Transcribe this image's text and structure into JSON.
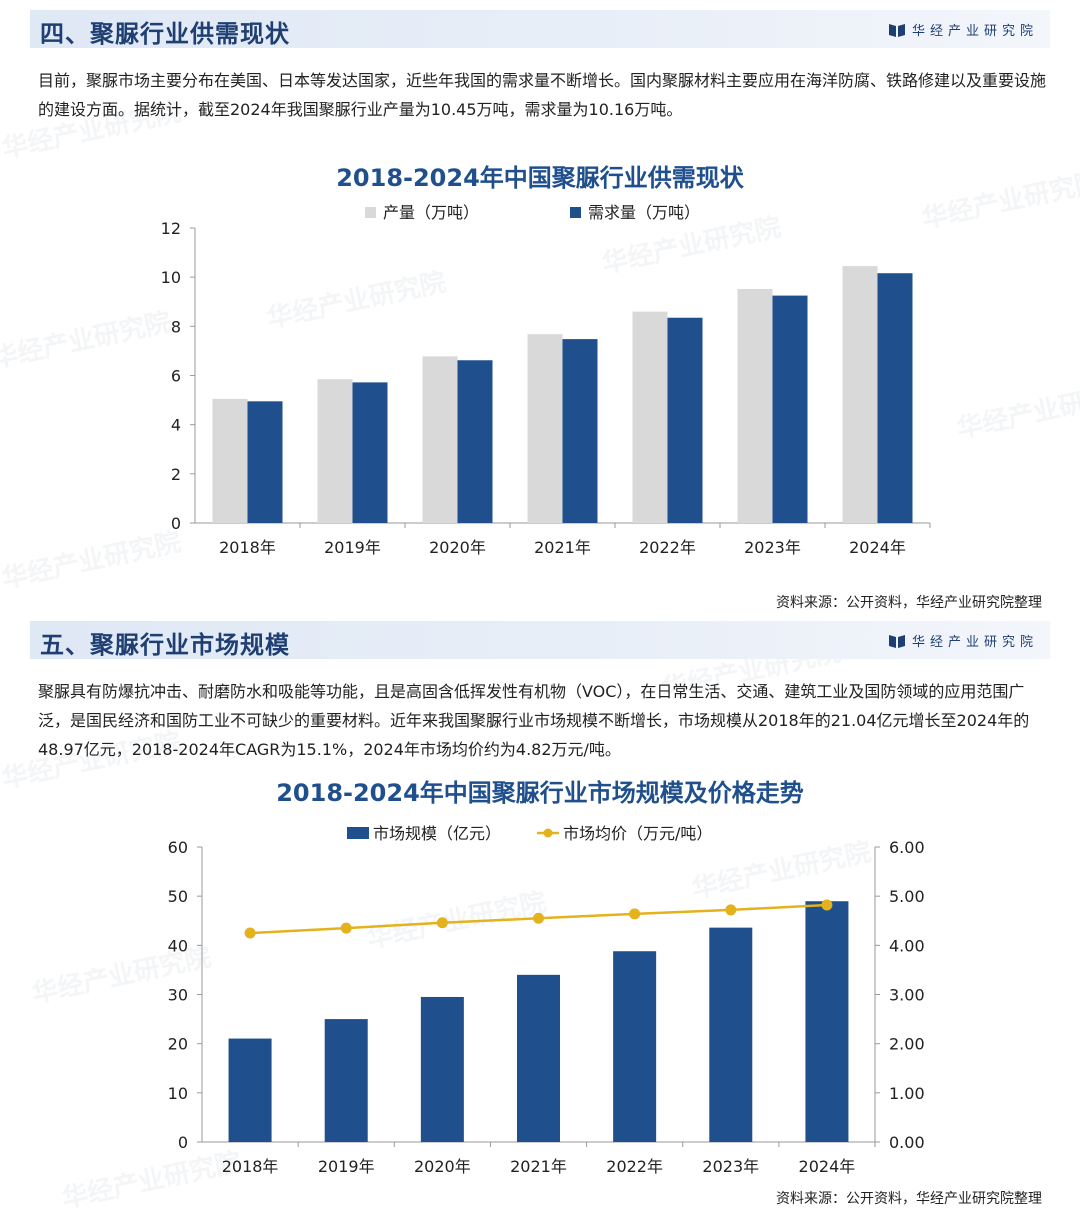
{
  "brand": "华经产业研究院",
  "watermark_text": "华经产业研究院",
  "colors": {
    "navy": "#1f4f8c",
    "grey_bar": "#d9d9d9",
    "gold": "#e3b21c",
    "title_blue": "#1f4f8c"
  },
  "section4": {
    "title": "四、聚脲行业供需现状",
    "paragraph": "目前，聚脲市场主要分布在美国、日本等发达国家，近些年我国的需求量不断增长。国内聚脲材料主要应用在海洋防腐、铁路修建以及重要设施的建设方面。据统计，截至2024年我国聚脲行业产量为10.45万吨，需求量为10.16万吨。",
    "source": "资料来源：公开资料，华经产业研究院整理"
  },
  "section5": {
    "title": "五、聚脲行业市场规模",
    "paragraph": "聚脲具有防爆抗冲击、耐磨防水和吸能等功能，且是高固含低挥发性有机物（VOC），在日常生活、交通、建筑工业及国防领域的应用范围广泛，是国民经济和国防工业不可缺少的重要材料。近年来我国聚脲行业市场规模不断增长，市场规模从2018年的21.04亿元增长至2024年的48.97亿元，2018-2024年CAGR为15.1%，2024年市场均价约为4.82万元/吨。",
    "source": "资料来源：公开资料，华经产业研究院整理"
  },
  "chart_data": [
    {
      "type": "bar",
      "title": "2018-2024年中国聚脲行业供需现状",
      "categories": [
        "2018年",
        "2019年",
        "2020年",
        "2021年",
        "2022年",
        "2023年",
        "2024年"
      ],
      "series": [
        {
          "name": "产量（万吨）",
          "values": [
            5.05,
            5.85,
            6.78,
            7.68,
            8.6,
            9.52,
            10.45
          ]
        },
        {
          "name": "需求量（万吨）",
          "values": [
            4.95,
            5.72,
            6.62,
            7.48,
            8.35,
            9.25,
            10.16
          ]
        }
      ],
      "ylim": [
        0,
        12
      ],
      "yticks": [
        "0",
        "2",
        "4",
        "6",
        "8",
        "10",
        "12"
      ],
      "legend_position": "top-center",
      "grid": false
    },
    {
      "type": "bar+line",
      "title": "2018-2024年中国聚脲行业市场规模及价格走势",
      "categories": [
        "2018年",
        "2019年",
        "2020年",
        "2021年",
        "2022年",
        "2023年",
        "2024年"
      ],
      "series": [
        {
          "name": "市场规模（亿元）",
          "type": "bar",
          "axis": "left",
          "values": [
            21.04,
            25.0,
            29.5,
            34.0,
            38.8,
            43.6,
            48.97
          ]
        },
        {
          "name": "市场均价（万元/吨）",
          "type": "line",
          "axis": "right",
          "values": [
            4.25,
            4.35,
            4.46,
            4.55,
            4.64,
            4.72,
            4.82
          ]
        }
      ],
      "ylim_left": [
        0,
        60
      ],
      "yticks_left": [
        "0",
        "10",
        "20",
        "30",
        "40",
        "50",
        "60"
      ],
      "ylim_right": [
        0,
        6
      ],
      "yticks_right": [
        "0.00",
        "1.00",
        "2.00",
        "3.00",
        "4.00",
        "5.00",
        "6.00"
      ],
      "legend_position": "top-center",
      "grid": false
    }
  ]
}
